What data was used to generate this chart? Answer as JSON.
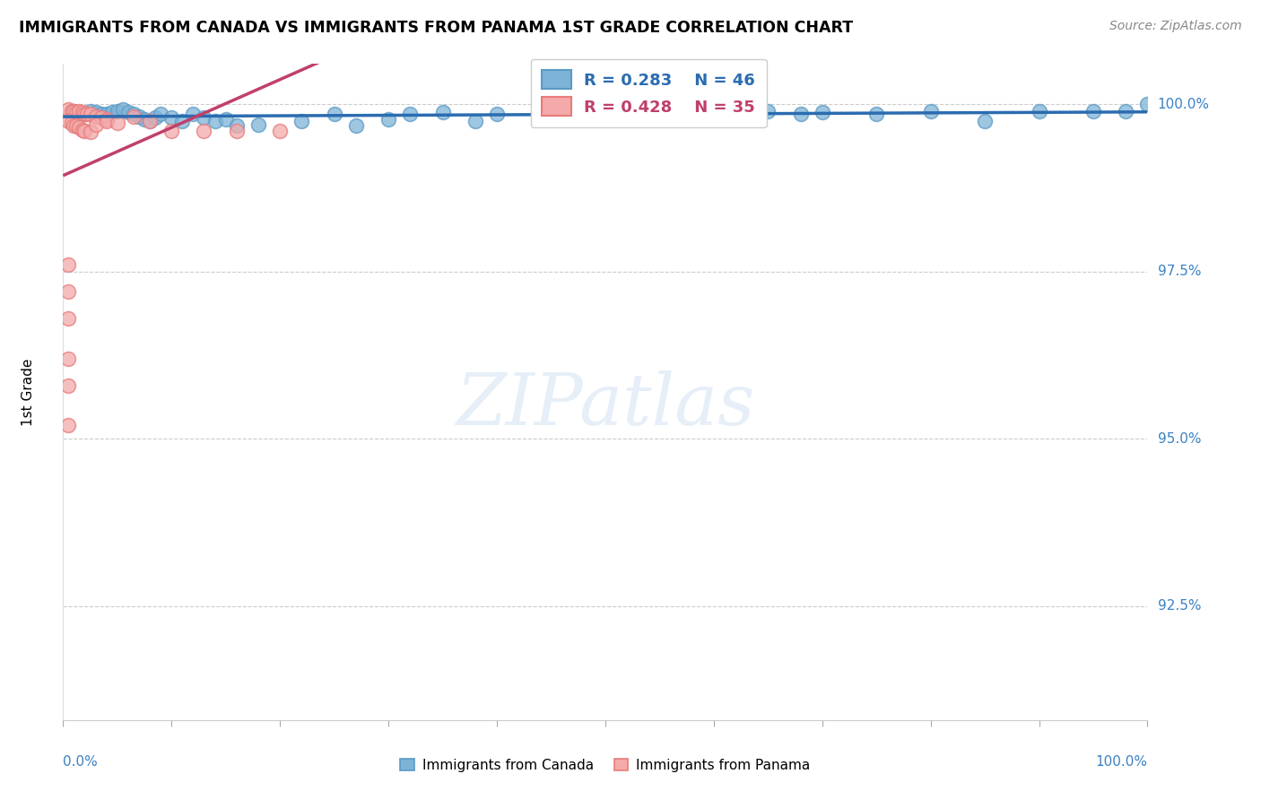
{
  "title": "IMMIGRANTS FROM CANADA VS IMMIGRANTS FROM PANAMA 1ST GRADE CORRELATION CHART",
  "source": "Source: ZipAtlas.com",
  "ylabel": "1st Grade",
  "blue_color": "#7EB3D8",
  "pink_color": "#F4AAAA",
  "blue_edge": "#5B9AC5",
  "pink_edge": "#E87B7B",
  "blue_line_color": "#2B6CB0",
  "pink_line_color": "#C0406A",
  "legend_blue_r": "R = 0.283",
  "legend_blue_n": "N = 46",
  "legend_pink_r": "R = 0.428",
  "legend_pink_n": "N = 35",
  "watermark": "ZIPatlas",
  "ytick_vals": [
    1.0,
    0.975,
    0.95,
    0.925
  ],
  "ytick_labels": [
    "100.0%",
    "97.5%",
    "95.0%",
    "92.5%"
  ],
  "xlim": [
    0.0,
    1.0
  ],
  "ylim": [
    0.908,
    1.006
  ],
  "canada_x": [
    0.01,
    0.02,
    0.025,
    0.03,
    0.035,
    0.04,
    0.045,
    0.05,
    0.055,
    0.06,
    0.065,
    0.07,
    0.075,
    0.08,
    0.085,
    0.09,
    0.1,
    0.11,
    0.12,
    0.13,
    0.14,
    0.15,
    0.16,
    0.18,
    0.22,
    0.25,
    0.27,
    0.3,
    0.32,
    0.35,
    0.38,
    0.4,
    0.44,
    0.5,
    0.55,
    0.6,
    0.65,
    0.68,
    0.7,
    0.75,
    0.8,
    0.85,
    0.9,
    0.95,
    0.98,
    1.0
  ],
  "canada_y": [
    0.999,
    0.9985,
    0.999,
    0.9988,
    0.9985,
    0.9985,
    0.9988,
    0.999,
    0.9992,
    0.9988,
    0.9985,
    0.9982,
    0.9978,
    0.9975,
    0.998,
    0.9985,
    0.998,
    0.9975,
    0.9985,
    0.998,
    0.9975,
    0.9978,
    0.9968,
    0.997,
    0.9975,
    0.9985,
    0.9968,
    0.9978,
    0.9985,
    0.9988,
    0.9975,
    0.9985,
    0.999,
    0.998,
    0.999,
    0.9985,
    0.999,
    0.9985,
    0.9988,
    0.9985,
    0.999,
    0.9975,
    0.999,
    0.999,
    0.999,
    1.0
  ],
  "panama_x": [
    0.005,
    0.008,
    0.01,
    0.012,
    0.015,
    0.018,
    0.02,
    0.022,
    0.025,
    0.03,
    0.035,
    0.04,
    0.005,
    0.008,
    0.01,
    0.012,
    0.015,
    0.018,
    0.02,
    0.025,
    0.03,
    0.04,
    0.05,
    0.065,
    0.08,
    0.1,
    0.13,
    0.16,
    0.2,
    0.005,
    0.005,
    0.005,
    0.005,
    0.005,
    0.005
  ],
  "panama_y": [
    0.9992,
    0.999,
    0.999,
    0.9988,
    0.999,
    0.9988,
    0.9985,
    0.9985,
    0.9985,
    0.9982,
    0.998,
    0.9978,
    0.9975,
    0.9972,
    0.9968,
    0.9968,
    0.9965,
    0.9962,
    0.996,
    0.9958,
    0.997,
    0.9975,
    0.9972,
    0.9982,
    0.9975,
    0.996,
    0.996,
    0.996,
    0.996,
    0.976,
    0.972,
    0.968,
    0.962,
    0.958,
    0.952
  ],
  "blue_trendline": [
    0.0,
    1.0,
    0.976,
    0.999
  ],
  "pink_trendline": [
    0.0,
    0.32,
    0.972,
    0.9992
  ]
}
